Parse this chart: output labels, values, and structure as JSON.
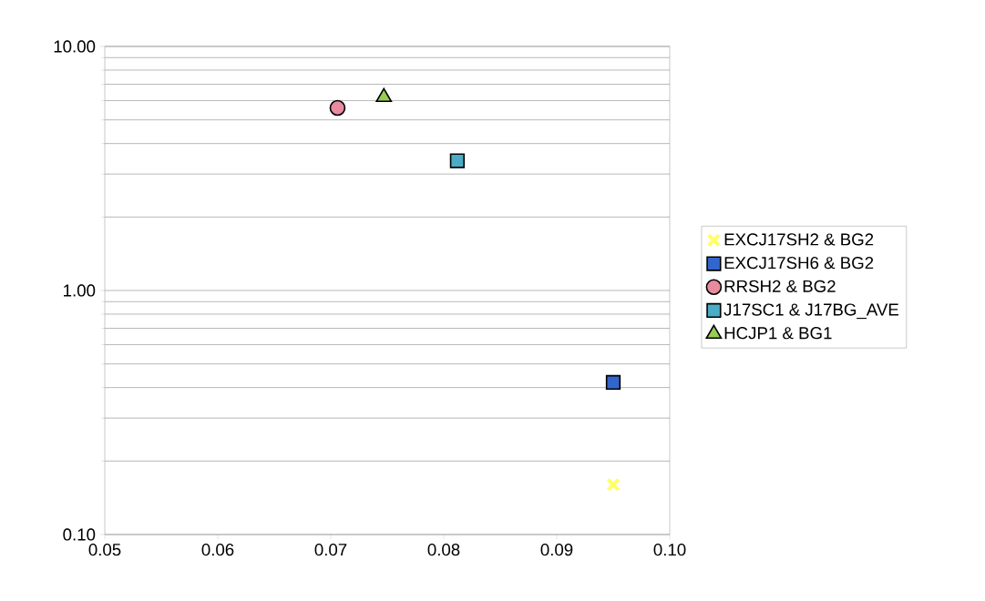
{
  "chart_data": {
    "type": "scatter",
    "xlim": [
      0.05,
      0.1
    ],
    "xticks": [
      {
        "value": 0.05,
        "label": "0.05"
      },
      {
        "value": 0.06,
        "label": "0.06"
      },
      {
        "value": 0.07,
        "label": "0.07"
      },
      {
        "value": 0.08,
        "label": "0.08"
      },
      {
        "value": 0.09,
        "label": "0.09"
      },
      {
        "value": 0.1,
        "label": "0.10"
      }
    ],
    "ylim": [
      0.1,
      10
    ],
    "yticks": [
      {
        "value": 0.1,
        "label": "0.10"
      },
      {
        "value": 1,
        "label": "1.00"
      },
      {
        "value": 10,
        "label": "10.00"
      }
    ],
    "log": "y",
    "grid": "y",
    "legend": "right",
    "series": [
      {
        "name": "EXCJ17SH2 & BG2",
        "color": "#ffff66",
        "marker": "cross",
        "x": [
          0.095
        ],
        "values": [
          0.16
        ]
      },
      {
        "name": "EXCJ17SH6 & BG2",
        "color": "#3366cc",
        "marker": "square",
        "x": [
          0.095
        ],
        "values": [
          0.42
        ]
      },
      {
        "name": "RRSH2 & BG2",
        "color": "#e88aa0",
        "marker": "circle",
        "x": [
          0.0706
        ],
        "values": [
          5.6
        ]
      },
      {
        "name": "J17SC1 & J17BG_AVE",
        "color": "#4bacc6",
        "marker": "square",
        "x": [
          0.0812
        ],
        "values": [
          3.4
        ]
      },
      {
        "name": "HCJP1 & BG1",
        "color": "#99cc55",
        "marker": "triangle",
        "x": [
          0.0747
        ],
        "values": [
          6.2
        ]
      }
    ]
  }
}
